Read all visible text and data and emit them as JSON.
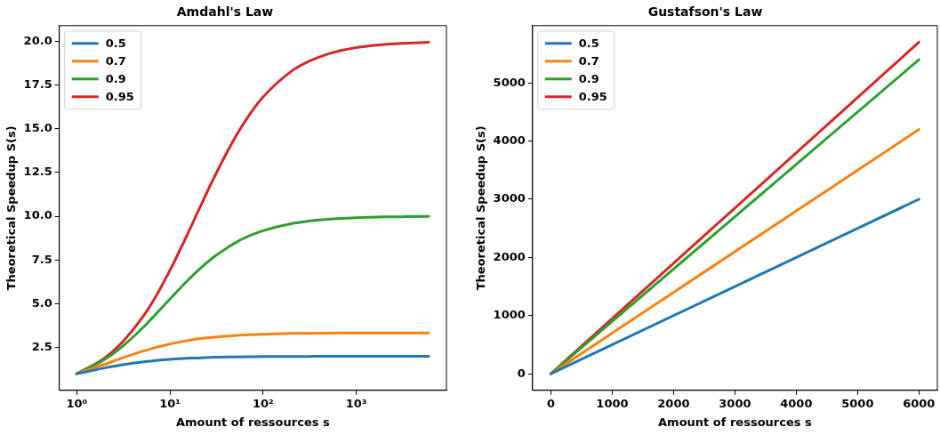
{
  "chart_data": [
    {
      "type": "line",
      "title": "Amdahl's Law",
      "xlabel": "Amount of ressources s",
      "ylabel": "Theoretical Speedup S(s)",
      "log": "x",
      "legend": "top left",
      "grid": false,
      "marker": "none",
      "line_style": "solid",
      "x": [
        1,
        2,
        3,
        5,
        7,
        10,
        15,
        20,
        30,
        50,
        70,
        100,
        200,
        300,
        500,
        1000,
        2000,
        3000,
        6000
      ],
      "xlim": [
        0.65,
        9300
      ],
      "xticks": [
        {
          "value": 1,
          "label": "10⁰"
        },
        {
          "value": 10,
          "label": "10¹"
        },
        {
          "value": 100,
          "label": "10²"
        },
        {
          "value": 1000,
          "label": "10³"
        }
      ],
      "ylim": [
        0.05,
        20.89
      ],
      "yticks": [
        2.5,
        {
          "value": 5,
          "label": "5.0"
        },
        7.5,
        {
          "value": 10,
          "label": "10.0"
        },
        12.5,
        {
          "value": 15,
          "label": "15.0"
        },
        17.5,
        {
          "value": 20,
          "label": "20.0"
        }
      ],
      "series": [
        {
          "name": "0.5",
          "color": "#1f77b4",
          "values": [
            1,
            1.33,
            1.5,
            1.67,
            1.75,
            1.82,
            1.88,
            1.9,
            1.94,
            1.96,
            1.97,
            1.98,
            1.99,
            1.99,
            2.0,
            2.0,
            2.0,
            2.0,
            2.0
          ]
        },
        {
          "name": "0.7",
          "color": "#ff7f0e",
          "values": [
            1,
            1.54,
            1.88,
            2.27,
            2.5,
            2.7,
            2.88,
            2.99,
            3.09,
            3.18,
            3.23,
            3.26,
            3.3,
            3.31,
            3.32,
            3.33,
            3.33,
            3.33,
            3.33
          ]
        },
        {
          "name": "0.9",
          "color": "#2ca02c",
          "values": [
            1,
            1.82,
            2.5,
            3.57,
            4.38,
            5.26,
            6.25,
            6.9,
            7.69,
            8.47,
            8.86,
            9.17,
            9.57,
            9.71,
            9.82,
            9.91,
            9.96,
            9.97,
            9.99
          ]
        },
        {
          "name": "0.95",
          "color": "#d62728",
          "values": [
            1,
            1.9,
            2.73,
            4.17,
            5.38,
            6.9,
            8.82,
            10.26,
            12.24,
            14.49,
            15.73,
            16.81,
            18.27,
            18.81,
            19.27,
            19.63,
            19.81,
            19.87,
            19.94
          ]
        }
      ]
    },
    {
      "type": "line",
      "title": "Gustafson's Law",
      "xlabel": "Amount of ressources s",
      "ylabel": "Theoretical Speedup S(s)",
      "legend": "top left",
      "grid": false,
      "marker": "none",
      "line_style": "solid",
      "x": [
        0,
        6000
      ],
      "xlim": [
        -300,
        6300
      ],
      "xticks": [
        0,
        1000,
        2000,
        3000,
        4000,
        5000,
        6000
      ],
      "ylim": [
        -285,
        5985
      ],
      "yticks": [
        0,
        1000,
        2000,
        3000,
        4000,
        5000
      ],
      "series": [
        {
          "name": "0.5",
          "color": "#1f77b4",
          "values": [
            0,
            3000
          ]
        },
        {
          "name": "0.7",
          "color": "#ff7f0e",
          "values": [
            0,
            4200
          ]
        },
        {
          "name": "0.9",
          "color": "#2ca02c",
          "values": [
            0,
            5400
          ]
        },
        {
          "name": "0.95",
          "color": "#d62728",
          "values": [
            0,
            5700
          ]
        }
      ]
    }
  ]
}
